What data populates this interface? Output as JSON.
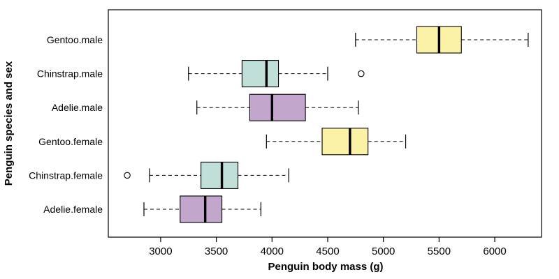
{
  "chart_data": {
    "type": "boxplot",
    "orientation": "horizontal",
    "title": "",
    "xlabel": "Penguin body mass (g)",
    "ylabel": "Penguin species and sex",
    "xlim": [
      2530,
      6420
    ],
    "xticks": [
      3000,
      3500,
      4000,
      4500,
      5000,
      5500,
      6000
    ],
    "grid": false,
    "legend": "none",
    "colors": {
      "gentoo": "#FBF2A7",
      "chinstrap": "#C0DFD9",
      "adelie": "#C3A6CC"
    },
    "boxes": [
      {
        "label": "Gentoo.male",
        "color": "#FBF2A7",
        "whisker_low": 4750,
        "q1": 5300,
        "median": 5500,
        "q3": 5700,
        "whisker_high": 6300,
        "outliers": []
      },
      {
        "label": "Chinstrap.male",
        "color": "#C0DFD9",
        "whisker_low": 3250,
        "q1": 3731,
        "median": 3950,
        "q3": 4058,
        "whisker_high": 4500,
        "outliers": [
          4800
        ]
      },
      {
        "label": "Adelie.male",
        "color": "#C3A6CC",
        "whisker_low": 3325,
        "q1": 3800,
        "median": 4000,
        "q3": 4300,
        "whisker_high": 4775,
        "outliers": []
      },
      {
        "label": "Gentoo.female",
        "color": "#FBF2A7",
        "whisker_low": 3950,
        "q1": 4450,
        "median": 4700,
        "q3": 4862,
        "whisker_high": 5200,
        "outliers": []
      },
      {
        "label": "Chinstrap.female",
        "color": "#C0DFD9",
        "whisker_low": 2900,
        "q1": 3362,
        "median": 3550,
        "q3": 3694,
        "whisker_high": 4150,
        "outliers": [
          2700
        ]
      },
      {
        "label": "Adelie.female",
        "color": "#C3A6CC",
        "whisker_low": 2850,
        "q1": 3175,
        "median": 3400,
        "q3": 3550,
        "whisker_high": 3900,
        "outliers": []
      }
    ]
  }
}
